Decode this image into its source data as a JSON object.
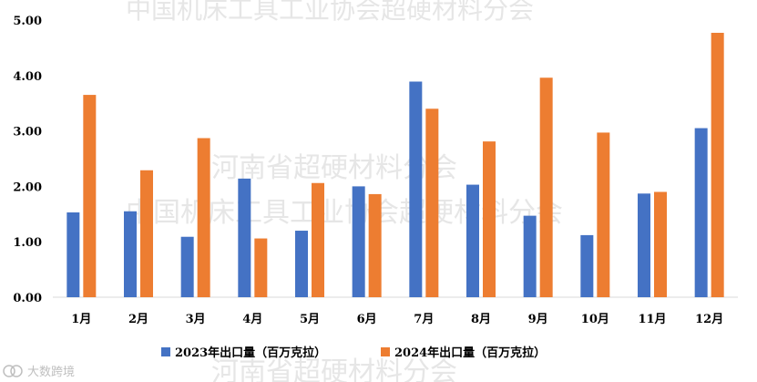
{
  "watermarks": [
    "中国机床工具工业协会超硬材料分会",
    "河南省超硬材料分会",
    "中国机床工具工业协会超硬材料分会",
    "河南省超硬材料分会"
  ],
  "logo": {
    "text": "大数跨境"
  },
  "chart_data": {
    "type": "bar",
    "categories": [
      "1月",
      "2月",
      "3月",
      "4月",
      "5月",
      "6月",
      "7月",
      "8月",
      "9月",
      "10月",
      "11月",
      "12月"
    ],
    "series": [
      {
        "name": "2023年出口量（百万克拉）",
        "color": "#4472c4",
        "values": [
          1.53,
          1.55,
          1.09,
          2.14,
          1.2,
          2.0,
          3.89,
          2.03,
          1.47,
          1.12,
          1.87,
          3.05
        ]
      },
      {
        "name": "2024年出口量（百万克拉）",
        "color": "#ed7d31",
        "values": [
          3.65,
          2.29,
          2.87,
          1.06,
          2.06,
          1.86,
          3.4,
          2.81,
          3.96,
          2.97,
          1.9,
          4.77
        ]
      }
    ],
    "ylim": [
      0,
      5
    ],
    "yticks": [
      "0.00",
      "1.00",
      "2.00",
      "3.00",
      "4.00",
      "5.00"
    ],
    "grid": false,
    "legend_position": "bottom"
  }
}
